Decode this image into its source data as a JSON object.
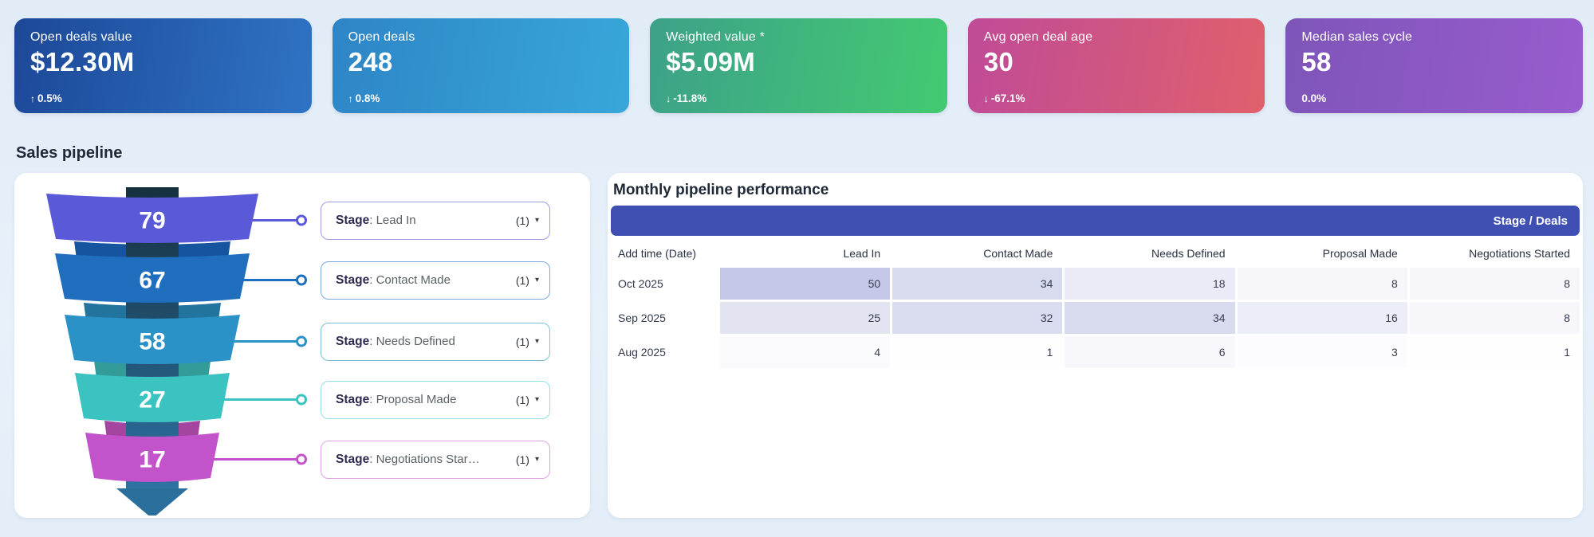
{
  "kpis": [
    {
      "label": "Open deals value",
      "value": "$12.30M",
      "delta": "0.5%",
      "direction": "up",
      "gradient": [
        "#1d4898",
        "#2f73c4"
      ]
    },
    {
      "label": "Open deals",
      "value": "248",
      "delta": "0.8%",
      "direction": "up",
      "gradient": [
        "#2e85c6",
        "#38a7da"
      ]
    },
    {
      "label": "Weighted value *",
      "value": "$5.09M",
      "delta": "-11.8%",
      "direction": "down",
      "gradient": [
        "#3da189",
        "#43ca71"
      ]
    },
    {
      "label": "Avg open deal age",
      "value": "30",
      "delta": "-67.1%",
      "direction": "down",
      "gradient": [
        "#bf4b97",
        "#e0606c"
      ]
    },
    {
      "label": "Median sales cycle",
      "value": "58",
      "delta": "0.0%",
      "direction": "none",
      "gradient": [
        "#7e55b9",
        "#985cce"
      ]
    }
  ],
  "sales_pipeline": {
    "title": "Sales pipeline",
    "stage_prefix": "Stage",
    "stages": [
      {
        "display_name": "Lead In",
        "count": "(1)",
        "value": 79,
        "color": "#5a5ad8",
        "back_color": "#4547bb",
        "border_color": "#9b9ce8"
      },
      {
        "display_name": "Contact Made",
        "count": "(1)",
        "value": 67,
        "color": "#1f6fbe",
        "back_color": "#17549f",
        "border_color": "#7ba7de"
      },
      {
        "display_name": "Needs Defined",
        "count": "(1)",
        "value": 58,
        "color": "#2b92c7",
        "back_color": "#22749e",
        "border_color": "#79c2d4"
      },
      {
        "display_name": "Proposal Made",
        "count": "(1)",
        "value": 27,
        "color": "#3bc3c2",
        "back_color": "#339c99",
        "border_color": "#90e2e8"
      },
      {
        "display_name": "Negotiations Star…",
        "count": "(1)",
        "value": 17,
        "color": "#c253cb",
        "back_color": "#a4459f",
        "border_color": "#dca3e3"
      }
    ],
    "funnel_column_colors": [
      "#16303f",
      "#2e73a3"
    ],
    "arrow_color": "#2b6f9d"
  },
  "table": {
    "title": "Monthly pipeline performance",
    "corner_label": "Stage / Deals",
    "header_bar_color": "#3f4fb2",
    "columns": [
      "Add time (Date)",
      "Lead In",
      "Contact Made",
      "Needs Defined",
      "Proposal Made",
      "Negotiations Started"
    ],
    "rows": [
      {
        "label": "Oct 2025",
        "values": [
          50,
          34,
          18,
          8,
          8
        ]
      },
      {
        "label": "Sep 2025",
        "values": [
          25,
          32,
          34,
          16,
          8
        ]
      },
      {
        "label": "Aug 2025",
        "values": [
          4,
          1,
          6,
          3,
          1
        ]
      }
    ],
    "heat_base_rgb": [
      167,
      172,
      217
    ],
    "heat_max": 50,
    "heat_max_alpha": 0.66
  },
  "chart_data": [
    {
      "type": "funnel",
      "title": "Sales pipeline",
      "categories": [
        "Lead In",
        "Contact Made",
        "Needs Defined",
        "Proposal Made",
        "Negotiations Started"
      ],
      "values": [
        79,
        67,
        58,
        27,
        17
      ]
    },
    {
      "type": "heatmap",
      "title": "Monthly pipeline performance",
      "x_labels": [
        "Lead In",
        "Contact Made",
        "Needs Defined",
        "Proposal Made",
        "Negotiations Started"
      ],
      "y_labels": [
        "Oct 2025",
        "Sep 2025",
        "Aug 2025"
      ],
      "values": [
        [
          50,
          34,
          18,
          8,
          8
        ],
        [
          25,
          32,
          34,
          16,
          8
        ],
        [
          4,
          1,
          6,
          3,
          1
        ]
      ]
    }
  ]
}
